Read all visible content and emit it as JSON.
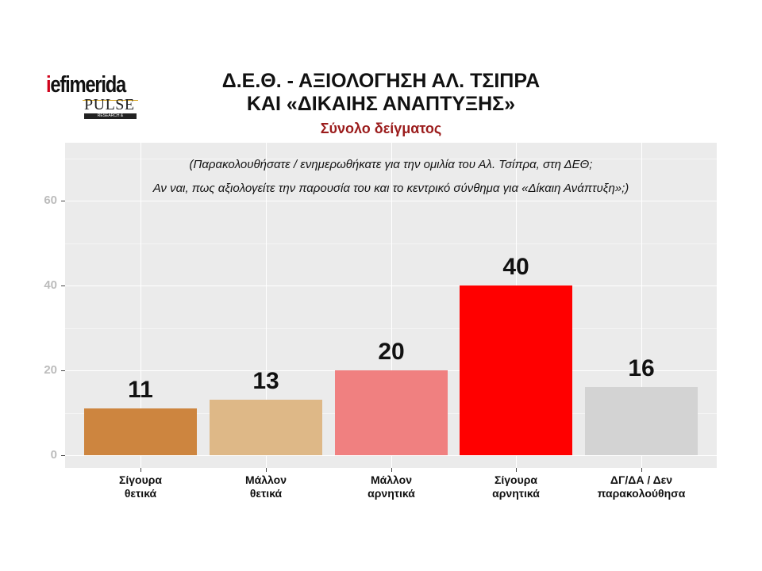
{
  "logo": {
    "brand_prefix": "i",
    "brand_rest": "efimerida",
    "partner": "PULSE",
    "partner_sub": "RESEARCH & CONSULTING"
  },
  "header": {
    "title_line1": "Δ.Ε.Θ. - ΑΞΙΟΛΟΓΗΣΗ ΑΛ. ΤΣΙΠΡΑ",
    "title_line2": "ΚΑΙ «ΔΙΚΑΙΗΣ ΑΝΑΠΤΥΞΗΣ»",
    "subtitle": "Σύνολο δείγματος"
  },
  "question": {
    "line1": "(Παρακολουθήσατε / ενημερωθήκατε για την ομιλία του Αλ. Τσίπρα, στη ΔΕΘ;",
    "line2": "Αν ναι, πως αξιολογείτε την παρουσία του και το κεντρικό σύνθημα για «Δίκαιη Ανάπτυξη»;)"
  },
  "axis": {
    "y_ticks": [
      "0",
      "20",
      "40",
      "60"
    ]
  },
  "bars": [
    {
      "label_line1": "Σίγουρα",
      "label_line2": "θετικά",
      "value": "11",
      "color": "#cd853f"
    },
    {
      "label_line1": "Μάλλον",
      "label_line2": "θετικά",
      "value": "13",
      "color": "#deb887"
    },
    {
      "label_line1": "Μάλλον",
      "label_line2": "αρνητικά",
      "value": "20",
      "color": "#f08080"
    },
    {
      "label_line1": "Σίγουρα",
      "label_line2": "αρνητικά",
      "value": "40",
      "color": "#ff0000"
    },
    {
      "label_line1": "ΔΓ/ΔΑ / Δεν",
      "label_line2": "παρακολούθησα",
      "value": "16",
      "color": "#d3d3d3"
    }
  ],
  "chart_data": {
    "type": "bar",
    "title": "Δ.Ε.Θ. - ΑΞΙΟΛΟΓΗΣΗ ΑΛ. ΤΣΙΠΡΑ ΚΑΙ «ΔΙΚΑΙΗΣ ΑΝΑΠΤΥΞΗΣ»",
    "subtitle": "Σύνολο δείγματος",
    "annotation": "(Παρακολουθήσατε / ενημερωθήκατε για την ομιλία του Αλ. Τσίπρα, στη ΔΕΘ; Αν ναι, πως αξιολογείτε την παρουσία του και το κεντρικό σύνθημα για «Δίκαιη Ανάπτυξη»;)",
    "categories": [
      "Σίγουρα θετικά",
      "Μάλλον θετικά",
      "Μάλλον αρνητικά",
      "Σίγουρα αρνητικά",
      "ΔΓ/ΔΑ / Δεν παρακολούθησα"
    ],
    "values": [
      11,
      13,
      20,
      40,
      16
    ],
    "colors": [
      "#cd853f",
      "#deb887",
      "#f08080",
      "#ff0000",
      "#d3d3d3"
    ],
    "xlabel": "",
    "ylabel": "",
    "ylim": [
      0,
      70
    ],
    "y_ticks": [
      0,
      20,
      40,
      60
    ],
    "grid": true,
    "legend": "none",
    "data_labels": true
  }
}
